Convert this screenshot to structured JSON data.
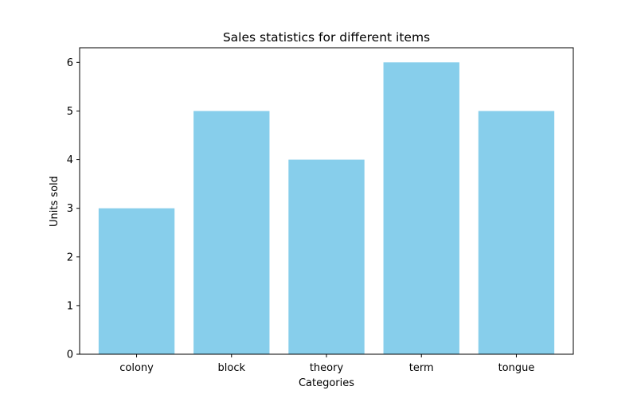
{
  "chart_data": {
    "type": "bar",
    "title": "Sales statistics for different items",
    "xlabel": "Categories",
    "ylabel": "Units sold",
    "categories": [
      "colony",
      "block",
      "theory",
      "term",
      "tongue"
    ],
    "values": [
      3,
      5,
      4,
      6,
      5
    ],
    "ylim": [
      0,
      6.3
    ],
    "yticks": [
      0,
      1,
      2,
      3,
      4,
      5,
      6
    ],
    "bar_color": "#87CEEB",
    "grid": false,
    "legend": "none"
  }
}
